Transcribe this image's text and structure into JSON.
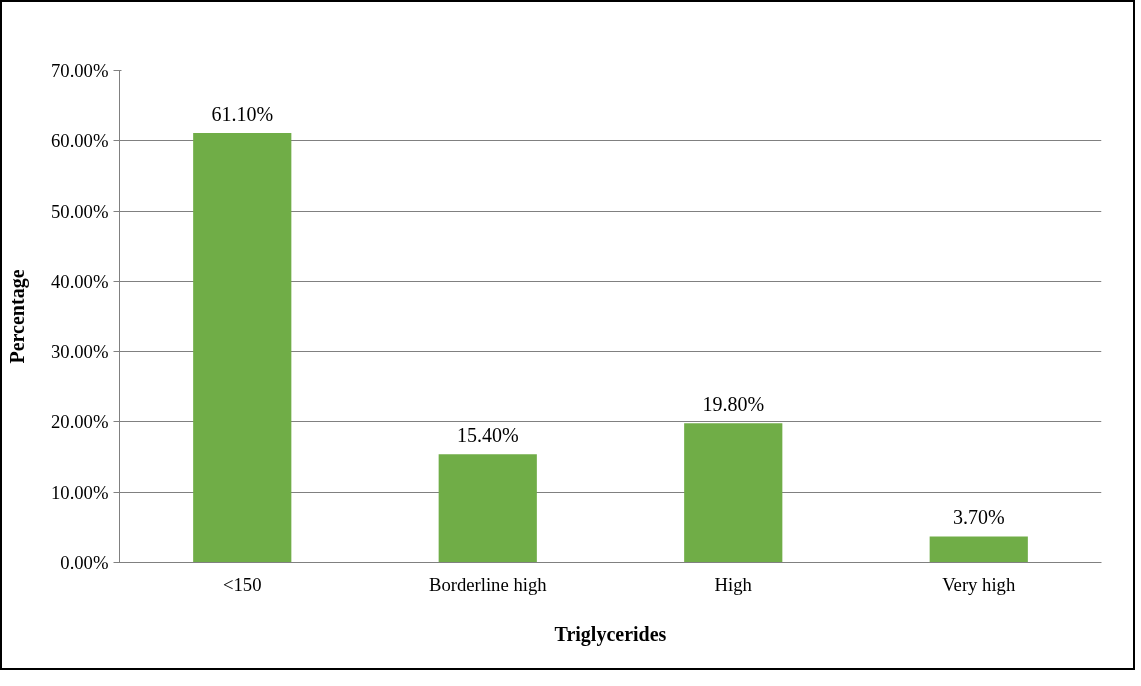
{
  "chart_data": {
    "type": "bar",
    "xlabel": "Triglycerides",
    "ylabel": "Percentage",
    "categories": [
      "<150",
      "Borderline high",
      "High",
      "Very high"
    ],
    "values": [
      61.1,
      15.4,
      19.8,
      3.7
    ],
    "value_labels": [
      "61.10%",
      "15.40%",
      "19.80%",
      "3.70%"
    ],
    "color": "#70ad47",
    "ylim": [
      0,
      70
    ],
    "yticks": [
      {
        "value": 0,
        "label": "0.00%"
      },
      {
        "value": 10,
        "label": "10.00%"
      },
      {
        "value": 20,
        "label": "20.00%"
      },
      {
        "value": 30,
        "label": "30.00%"
      },
      {
        "value": 40,
        "label": "40.00%"
      },
      {
        "value": 50,
        "label": "50.00%"
      },
      {
        "value": 60,
        "label": "60.00%"
      },
      {
        "value": 70,
        "label": "70.00%"
      }
    ],
    "grid": "y"
  }
}
